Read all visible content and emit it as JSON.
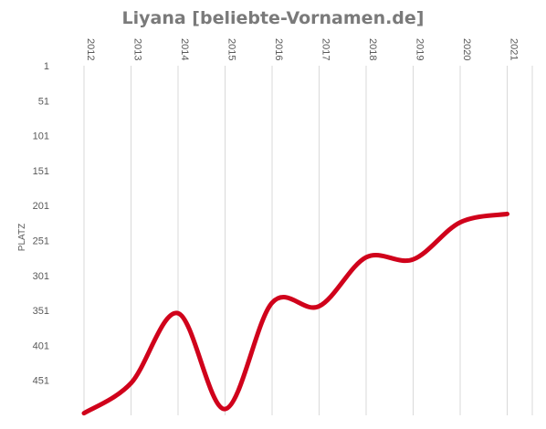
{
  "chart_data": {
    "type": "line",
    "title": "Liyana [beliebte-Vornamen.de]",
    "ylabel": "PLATZ",
    "xlabel": "",
    "categories": [
      "2012",
      "2013",
      "2014",
      "2015",
      "2016",
      "2017",
      "2018",
      "2019",
      "2020",
      "2021"
    ],
    "series": [
      {
        "values": [
          498,
          455,
          355,
          492,
          340,
          345,
          275,
          278,
          225,
          213
        ]
      }
    ],
    "y_ticks": [
      "1",
      "51",
      "101",
      "151",
      "201",
      "251",
      "301",
      "351",
      "401",
      "451"
    ],
    "ylim": [
      1,
      501
    ],
    "y_inverted": true,
    "x_axis_position": "top",
    "x_tick_rotation": 90,
    "grid": "vertical",
    "line_color": "#d0021b",
    "smooth": true
  }
}
